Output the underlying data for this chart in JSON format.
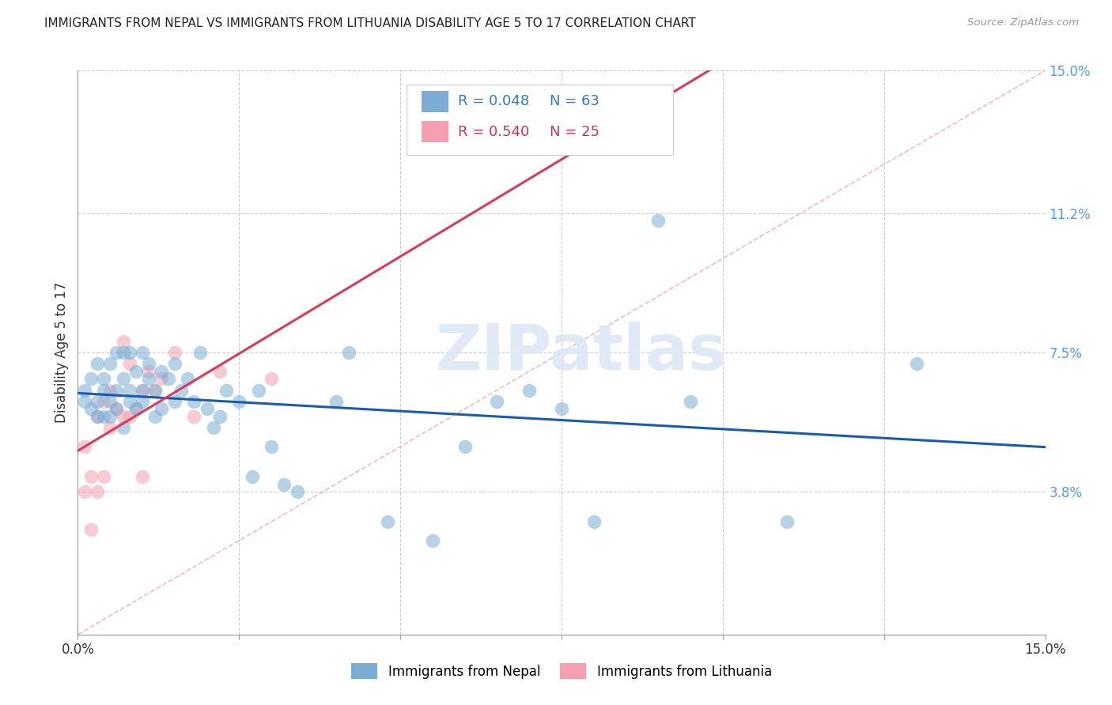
{
  "title": "IMMIGRANTS FROM NEPAL VS IMMIGRANTS FROM LITHUANIA DISABILITY AGE 5 TO 17 CORRELATION CHART",
  "source": "Source: ZipAtlas.com",
  "ylabel_left": "Disability Age 5 to 17",
  "right_yticklabels": [
    "3.8%",
    "7.5%",
    "11.2%",
    "15.0%"
  ],
  "right_yticks": [
    0.038,
    0.075,
    0.112,
    0.15
  ],
  "xlim": [
    0.0,
    0.15
  ],
  "ylim": [
    0.0,
    0.15
  ],
  "nepal_R": 0.048,
  "nepal_N": 63,
  "lithuania_R": 0.54,
  "lithuania_N": 25,
  "nepal_color": "#7BADD4",
  "lithuania_color": "#F4A0B0",
  "nepal_line_color": "#1A5BAB",
  "lithuania_line_color": "#D93B5A",
  "legend_nepal_label": "Immigrants from Nepal",
  "legend_lithuania_label": "Immigrants from Lithuania",
  "nepal_x": [
    0.001,
    0.001,
    0.002,
    0.002,
    0.003,
    0.003,
    0.003,
    0.004,
    0.004,
    0.004,
    0.005,
    0.005,
    0.005,
    0.006,
    0.006,
    0.006,
    0.007,
    0.007,
    0.007,
    0.008,
    0.008,
    0.008,
    0.009,
    0.009,
    0.01,
    0.01,
    0.01,
    0.011,
    0.011,
    0.012,
    0.012,
    0.013,
    0.013,
    0.014,
    0.015,
    0.015,
    0.016,
    0.017,
    0.018,
    0.019,
    0.02,
    0.021,
    0.022,
    0.023,
    0.025,
    0.027,
    0.028,
    0.03,
    0.032,
    0.034,
    0.04,
    0.042,
    0.048,
    0.055,
    0.06,
    0.065,
    0.07,
    0.075,
    0.08,
    0.09,
    0.095,
    0.11,
    0.13
  ],
  "nepal_y": [
    0.062,
    0.065,
    0.06,
    0.068,
    0.058,
    0.062,
    0.072,
    0.065,
    0.068,
    0.058,
    0.062,
    0.072,
    0.058,
    0.065,
    0.06,
    0.075,
    0.055,
    0.068,
    0.075,
    0.062,
    0.075,
    0.065,
    0.06,
    0.07,
    0.065,
    0.062,
    0.075,
    0.068,
    0.072,
    0.058,
    0.065,
    0.07,
    0.06,
    0.068,
    0.072,
    0.062,
    0.065,
    0.068,
    0.062,
    0.075,
    0.06,
    0.055,
    0.058,
    0.065,
    0.062,
    0.042,
    0.065,
    0.05,
    0.04,
    0.038,
    0.062,
    0.075,
    0.03,
    0.025,
    0.05,
    0.062,
    0.065,
    0.06,
    0.03,
    0.11,
    0.062,
    0.03,
    0.072
  ],
  "lith_x": [
    0.001,
    0.001,
    0.002,
    0.002,
    0.003,
    0.003,
    0.004,
    0.004,
    0.005,
    0.005,
    0.006,
    0.007,
    0.007,
    0.008,
    0.008,
    0.009,
    0.01,
    0.01,
    0.011,
    0.012,
    0.013,
    0.015,
    0.018,
    0.022,
    0.03
  ],
  "lith_y": [
    0.038,
    0.05,
    0.028,
    0.042,
    0.038,
    0.058,
    0.042,
    0.062,
    0.055,
    0.065,
    0.06,
    0.078,
    0.058,
    0.058,
    0.072,
    0.06,
    0.042,
    0.065,
    0.07,
    0.065,
    0.068,
    0.075,
    0.058,
    0.07,
    0.068
  ],
  "watermark": "ZIPatlas",
  "bg_color": "#FFFFFF",
  "grid_color": "#CCCCCC",
  "diag_color": "#F0AAAA"
}
